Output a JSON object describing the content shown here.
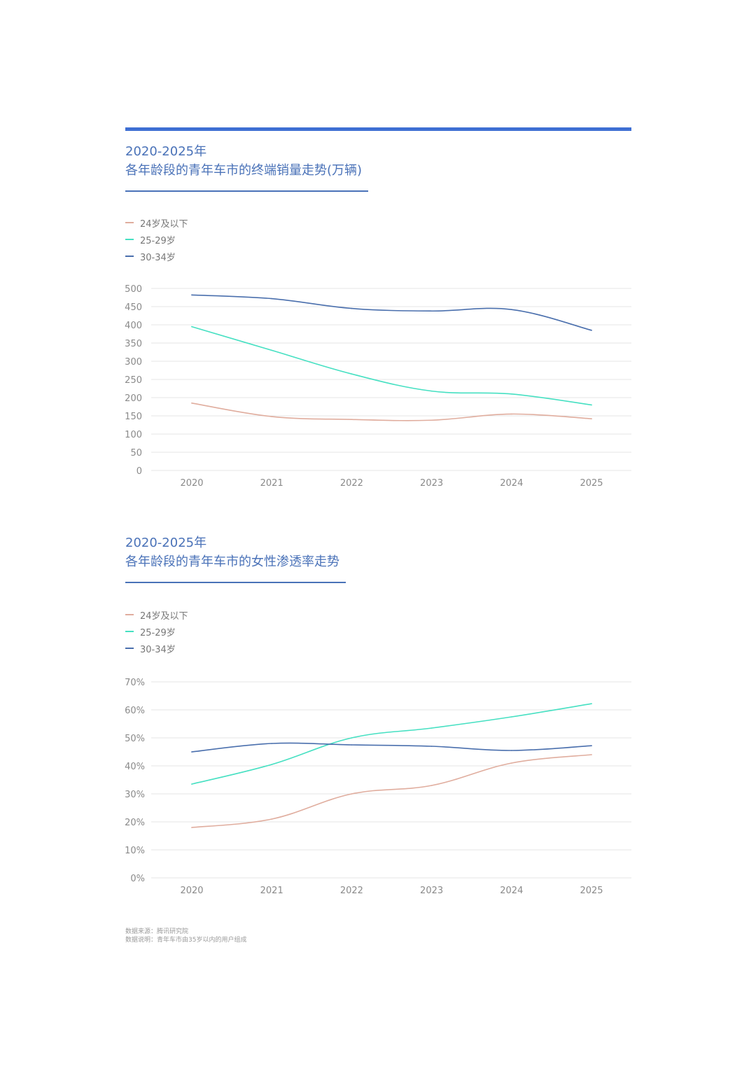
{
  "colors": {
    "accent": "#3e6fd3",
    "title": "#4a72b8",
    "series_24": "#e0ad9e",
    "series_25_29": "#46e0c2",
    "series_30_34": "#4a6fad",
    "grid": "#e6e6e6"
  },
  "chart1": {
    "title_line1": "2020-2025年",
    "title_line2": "各年龄段的青年车市的终端销量走势(万辆)"
  },
  "chart2": {
    "title_line1": "2020-2025年",
    "title_line2": "各年龄段的青年车市的女性渗透率走势"
  },
  "footnote": {
    "source": "数据来源：腾讯研究院",
    "note": "数据说明：青年车市由35岁以内的用户组成"
  },
  "chart_data": [
    {
      "type": "line",
      "title": "2020-2025年 各年龄段的青年车市的终端销量走势(万辆)",
      "xlabel": "",
      "ylabel": "万辆",
      "categories": [
        "2020",
        "2021",
        "2022",
        "2023",
        "2024",
        "2025"
      ],
      "ylim": [
        0,
        500
      ],
      "yticks": [
        0,
        50,
        100,
        150,
        200,
        250,
        300,
        350,
        400,
        450,
        500
      ],
      "ytick_labels": [
        "0",
        "50",
        "100",
        "150",
        "200",
        "250",
        "300",
        "350",
        "400",
        "450",
        "500"
      ],
      "legend": "top-left",
      "grid": true,
      "series": [
        {
          "name": "24岁及以下",
          "color": "#e0ad9e",
          "values": [
            185,
            148,
            140,
            138,
            155,
            142
          ]
        },
        {
          "name": "25-29岁",
          "color": "#46e0c2",
          "values": [
            395,
            330,
            265,
            218,
            210,
            180
          ]
        },
        {
          "name": "30-34岁",
          "color": "#4a6fad",
          "values": [
            482,
            472,
            445,
            438,
            442,
            385
          ]
        }
      ]
    },
    {
      "type": "line",
      "title": "2020-2025年 各年龄段的青年车市的女性渗透率走势",
      "xlabel": "",
      "ylabel": "%",
      "categories": [
        "2020",
        "2021",
        "2022",
        "2023",
        "2024",
        "2025"
      ],
      "ylim": [
        0,
        70
      ],
      "yticks": [
        0,
        10,
        20,
        30,
        40,
        50,
        60,
        70
      ],
      "ytick_labels": [
        "0%",
        "10%",
        "20%",
        "30%",
        "40%",
        "50%",
        "60%",
        "70%"
      ],
      "legend": "top-left",
      "grid": true,
      "series": [
        {
          "name": "24岁及以下",
          "color": "#e0ad9e",
          "values": [
            18,
            21,
            30,
            33,
            41,
            44
          ]
        },
        {
          "name": "25-29岁",
          "color": "#46e0c2",
          "values": [
            33.5,
            40.5,
            50,
            53.5,
            57.5,
            62.2
          ]
        },
        {
          "name": "30-34岁",
          "color": "#4a6fad",
          "values": [
            45,
            48,
            47.5,
            47,
            45.5,
            47.2
          ]
        }
      ]
    }
  ]
}
